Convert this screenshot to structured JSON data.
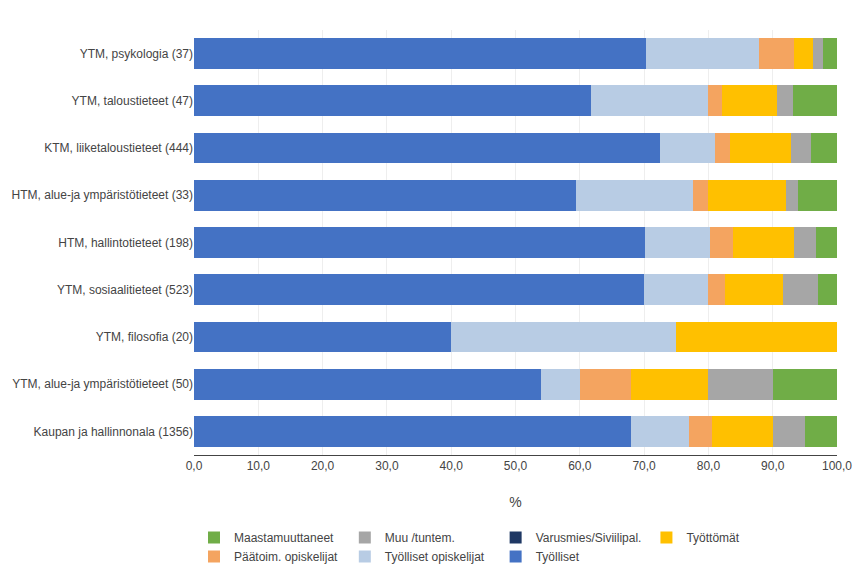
{
  "chart_data": {
    "type": "bar",
    "orientation": "horizontal",
    "stacked": true,
    "categories": [
      "YTM, psykologia (37)",
      "YTM, taloustieteet (47)",
      "KTM, liiketaloustieteet (444)",
      "HTM, alue-ja ympäristötieteet (33)",
      "HTM, hallintotieteet (198)",
      "YTM, sosiaalitieteet (523)",
      "YTM, filosofia (20)",
      "YTM, alue-ja ympäristötieteet (50)",
      "Kaupan ja hallinnonala (1356)"
    ],
    "series": [
      {
        "name": "Työlliset",
        "color": "#4472C4",
        "values": [
          70.3,
          61.7,
          72.5,
          59.4,
          70.2,
          70.0,
          40.0,
          54.0,
          68.0
        ]
      },
      {
        "name": "Työlliset opiskelijat",
        "color": "#B8CCE4",
        "values": [
          17.6,
          18.3,
          8.5,
          18.2,
          10.1,
          9.9,
          35.0,
          6.0,
          9.0
        ]
      },
      {
        "name": "Päätoim. opiskelijat",
        "color": "#F4A460",
        "values": [
          5.4,
          2.1,
          2.3,
          2.4,
          3.5,
          2.7,
          0.0,
          8.0,
          3.5
        ]
      },
      {
        "name": "Työttömät",
        "color": "#FFC000",
        "values": [
          3.0,
          8.5,
          9.5,
          12.0,
          9.5,
          9.0,
          25.0,
          12.0,
          9.5
        ]
      },
      {
        "name": "Varusmies/Siviilipal.",
        "color": "#1F3864",
        "values": [
          0.0,
          0.0,
          0.0,
          0.0,
          0.0,
          0.0,
          0.0,
          0.0,
          0.0
        ]
      },
      {
        "name": "Muu /tuntem.",
        "color": "#A6A6A6",
        "values": [
          1.5,
          2.6,
          3.2,
          2.0,
          3.5,
          5.5,
          0.0,
          10.0,
          5.0
        ]
      },
      {
        "name": "Maastamuuttaneet",
        "color": "#70AD47",
        "values": [
          2.2,
          6.8,
          4.0,
          6.0,
          3.2,
          2.9,
          0.0,
          10.0,
          5.0
        ]
      }
    ],
    "xlabel": "%",
    "xlim": [
      0,
      100
    ],
    "xticks": [
      {
        "value": 0,
        "label": "0,0"
      },
      {
        "value": 10,
        "label": "10,0"
      },
      {
        "value": 20,
        "label": "20,0"
      },
      {
        "value": 30,
        "label": "30,0"
      },
      {
        "value": 40,
        "label": "40,0"
      },
      {
        "value": 50,
        "label": "50,0"
      },
      {
        "value": 60,
        "label": "60,0"
      },
      {
        "value": 70,
        "label": "70,0"
      },
      {
        "value": 80,
        "label": "80,0"
      },
      {
        "value": 90,
        "label": "90,0"
      },
      {
        "value": 100,
        "label": "100,0"
      }
    ],
    "grid": true,
    "legend": "bottom"
  }
}
